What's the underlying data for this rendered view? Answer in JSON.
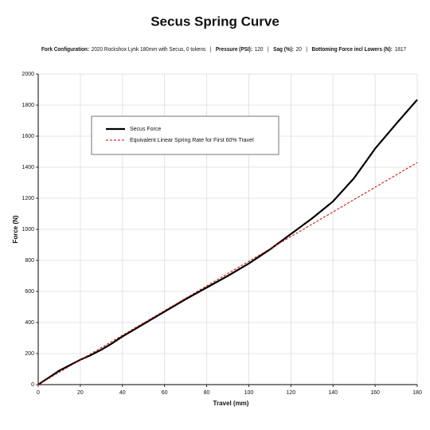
{
  "chart_data": {
    "type": "line",
    "title": "Secus Spring Curve",
    "subtitle": [
      {
        "label": "Fork Configuration:",
        "value": "2020 Rockshox Lynk 180mm with Secus, 0 tokens"
      },
      {
        "label": "Pressure (PSI):",
        "value": 120
      },
      {
        "label": "Sag (%):",
        "value": 20
      },
      {
        "label": "Bottoming Force incl Lowers (N):",
        "value": 1817
      }
    ],
    "separator": "|",
    "xlabel": "Travel (mm)",
    "ylabel": "Force (N)",
    "xlim": [
      0,
      180
    ],
    "ylim": [
      0,
      2000
    ],
    "xticks": [
      0,
      20,
      40,
      60,
      80,
      100,
      120,
      140,
      160,
      180
    ],
    "yticks": [
      0,
      200,
      400,
      600,
      800,
      1000,
      1200,
      1400,
      1600,
      1800,
      2000
    ],
    "grid": true,
    "legend": "upper left",
    "series": [
      {
        "name": "Secus Force",
        "color": "#000000",
        "style": "solid",
        "x": [
          0,
          5,
          10,
          15,
          20,
          25,
          30,
          35,
          40,
          50,
          60,
          70,
          80,
          90,
          100,
          110,
          120,
          130,
          140,
          150,
          160,
          170,
          180
        ],
        "values": [
          0,
          45,
          90,
          125,
          160,
          190,
          225,
          265,
          310,
          390,
          470,
          550,
          625,
          700,
          780,
          870,
          970,
          1070,
          1180,
          1330,
          1520,
          1680,
          1835
        ]
      },
      {
        "name": "Equivalent Linear Spring Rate for First 60% Travel",
        "color": "#cc0000",
        "style": "dashed",
        "x": [
          0,
          180
        ],
        "values": [
          0,
          1430
        ]
      }
    ]
  }
}
